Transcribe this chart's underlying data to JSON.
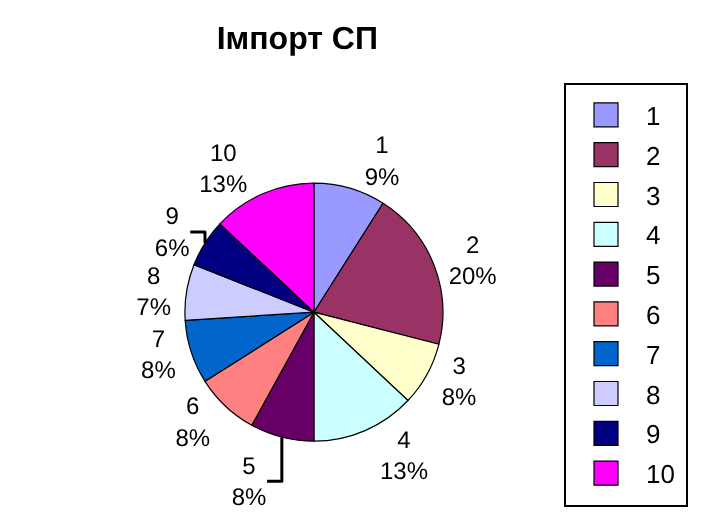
{
  "chart_data": {
    "type": "pie",
    "title": "Імпорт СП",
    "categories": [
      "1",
      "2",
      "3",
      "4",
      "5",
      "6",
      "7",
      "8",
      "9",
      "10"
    ],
    "values": [
      9,
      20,
      8,
      13,
      8,
      8,
      8,
      7,
      6,
      13
    ],
    "value_labels": [
      "9%",
      "20%",
      "8%",
      "13%",
      "8%",
      "8%",
      "8%",
      "7%",
      "6%",
      "13%"
    ],
    "colors": [
      "#9999ff",
      "#993366",
      "#ffffcc",
      "#ccffff",
      "#660066",
      "#ff8080",
      "#0066cc",
      "#ccccff",
      "#000080",
      "#ff00ff"
    ],
    "legend": "right"
  }
}
